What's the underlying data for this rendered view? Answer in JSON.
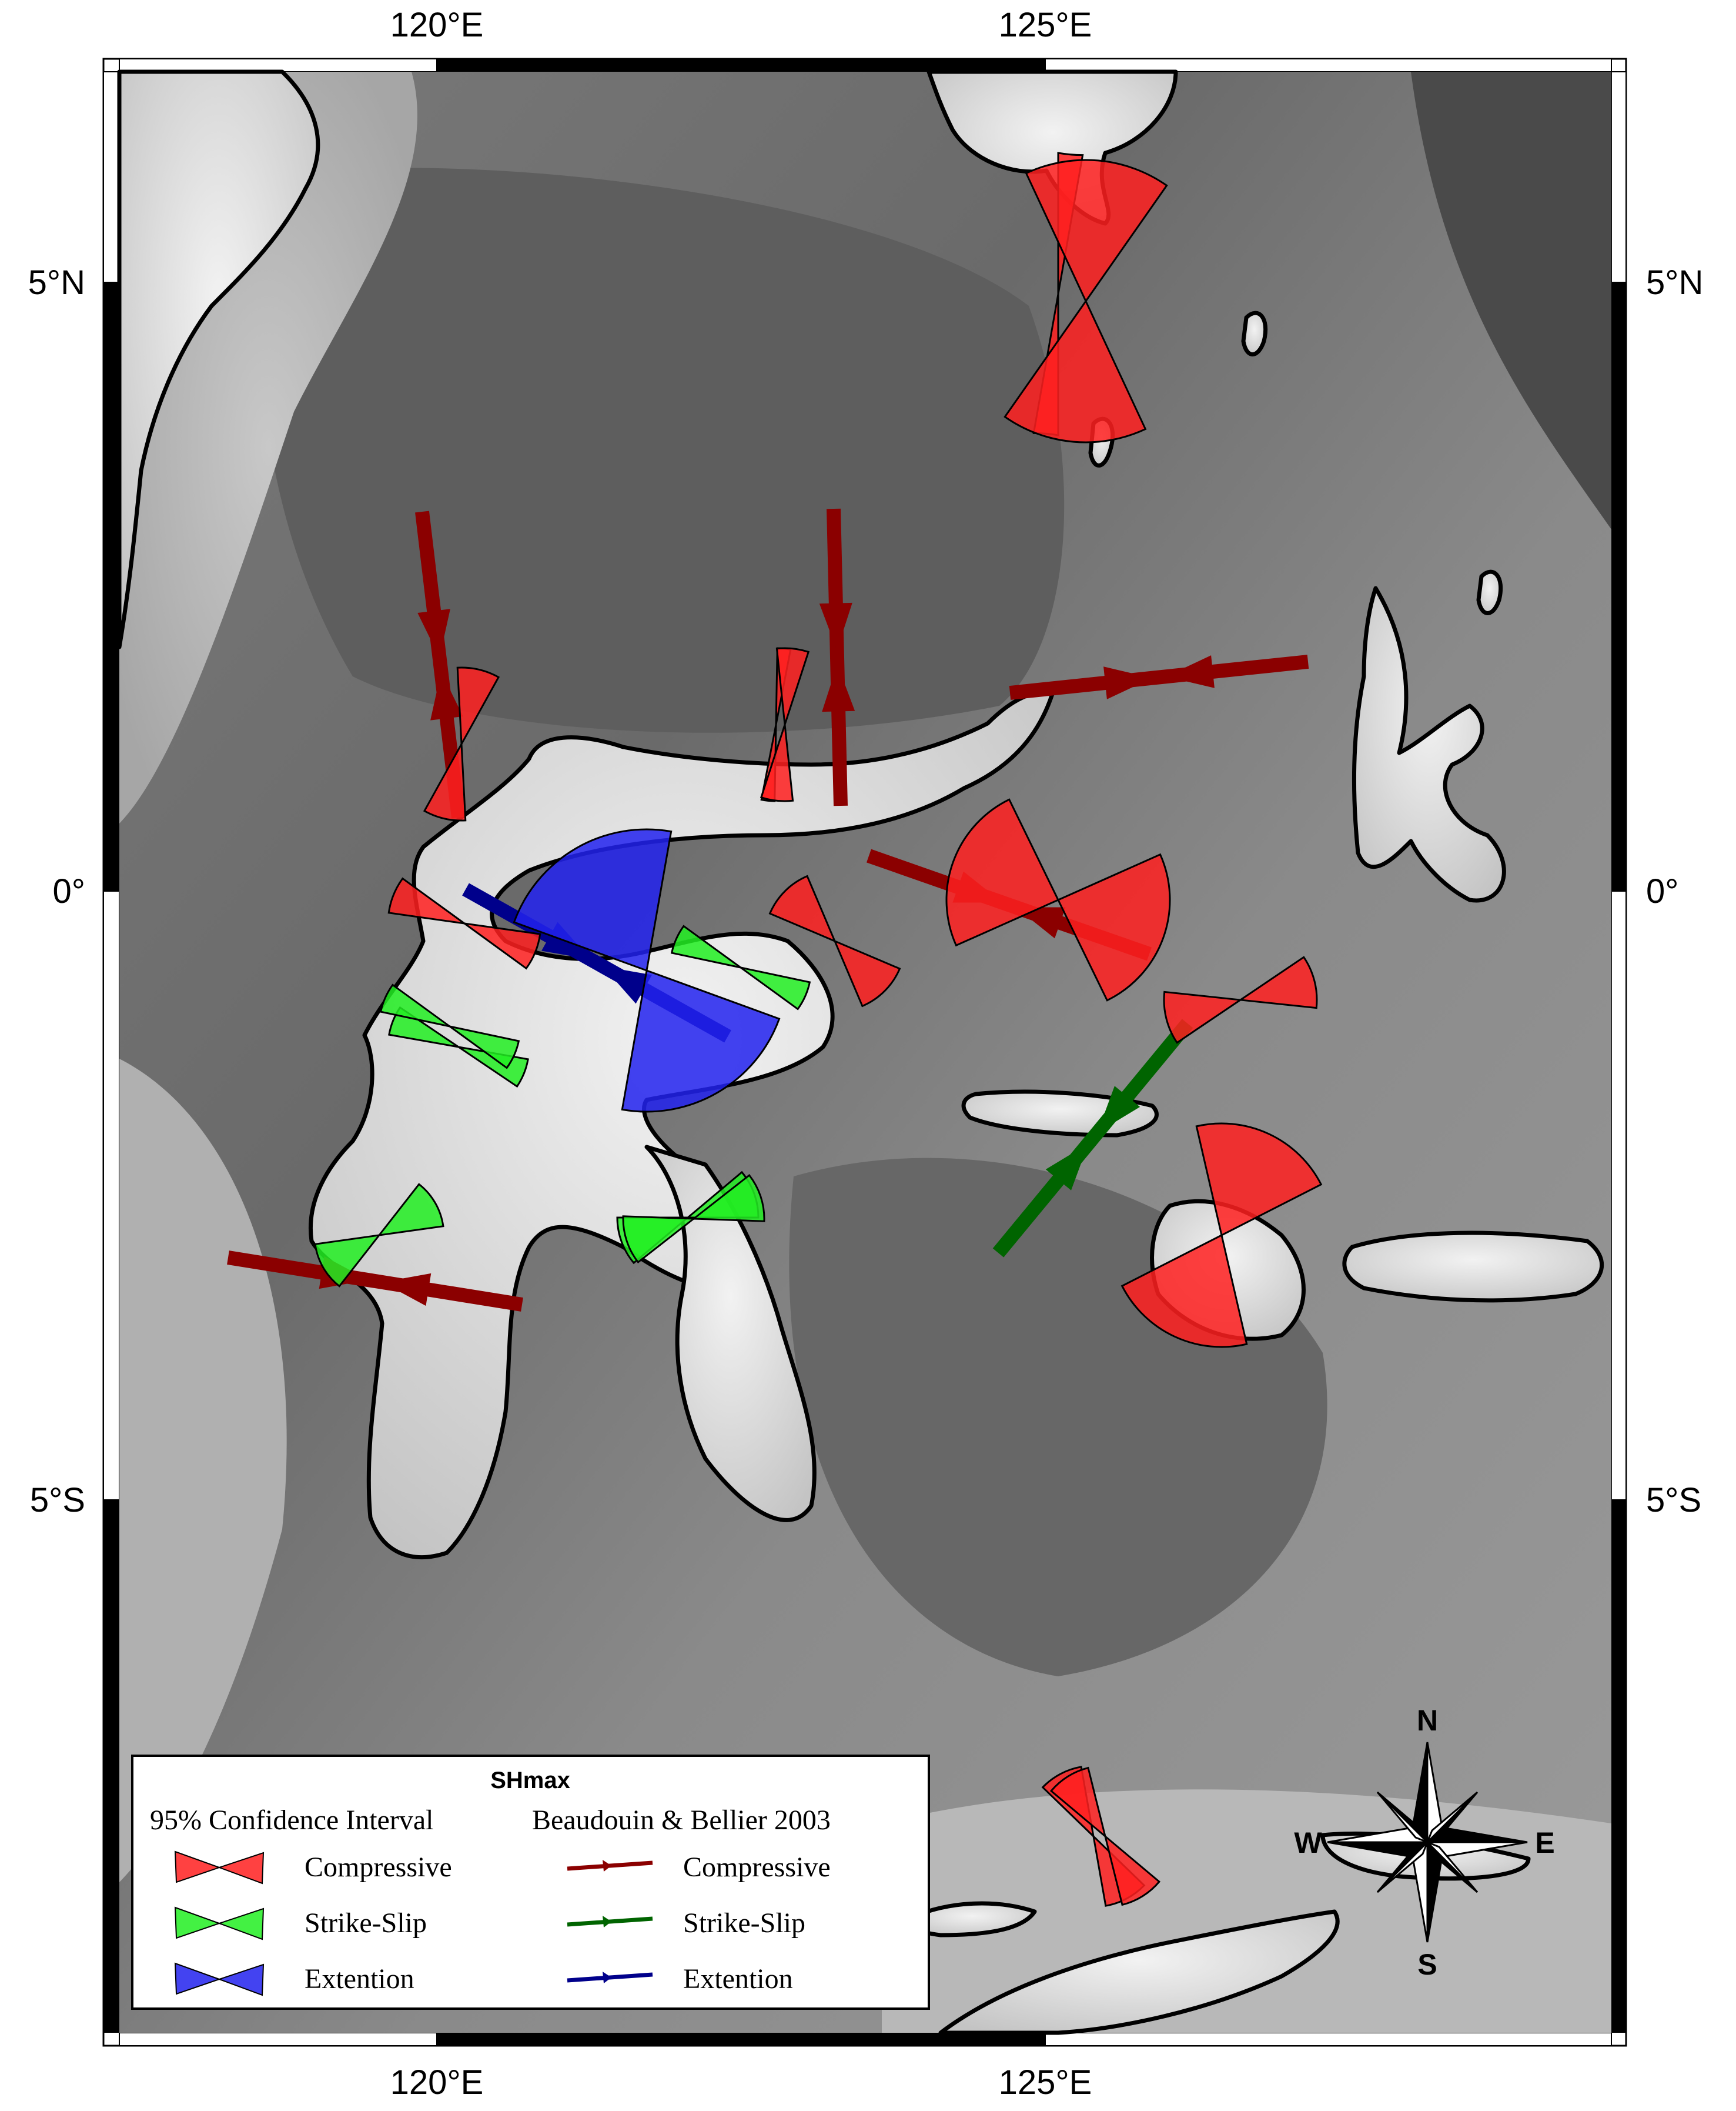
{
  "axes": {
    "top_labels": [
      "120°E",
      "125°E"
    ],
    "bottom_labels": [
      "120°E",
      "125°E"
    ],
    "left_labels": [
      "5°N",
      "0°",
      "5°S"
    ],
    "right_labels": [
      "5°N",
      "0°",
      "5°S"
    ]
  },
  "legend": {
    "title": "SHmax",
    "col1_header": "95% Confidence Interval",
    "col2_header": "Beaudouin & Bellier 2003",
    "rows": [
      {
        "label_left": "Compressive",
        "label_right": "Compressive",
        "wedge_color": "#ff2020",
        "arrow_color": "#8b0000"
      },
      {
        "label_left": "Strike-Slip",
        "label_right": "Strike-Slip",
        "wedge_color": "#22ee22",
        "arrow_color": "#006400"
      },
      {
        "label_left": "Extention",
        "label_right": "Extention",
        "wedge_color": "#2222ee",
        "arrow_color": "#00008b"
      }
    ]
  },
  "compass": {
    "n": "N",
    "s": "S",
    "e": "E",
    "w": "W"
  },
  "colors": {
    "compressive_wedge": "#ff2020",
    "strike_slip_wedge": "#22ee22",
    "extension_wedge": "#2222ee",
    "compressive_arrow": "#8b0000",
    "strike_slip_arrow": "#006400",
    "extension_arrow": "#00008b"
  }
}
